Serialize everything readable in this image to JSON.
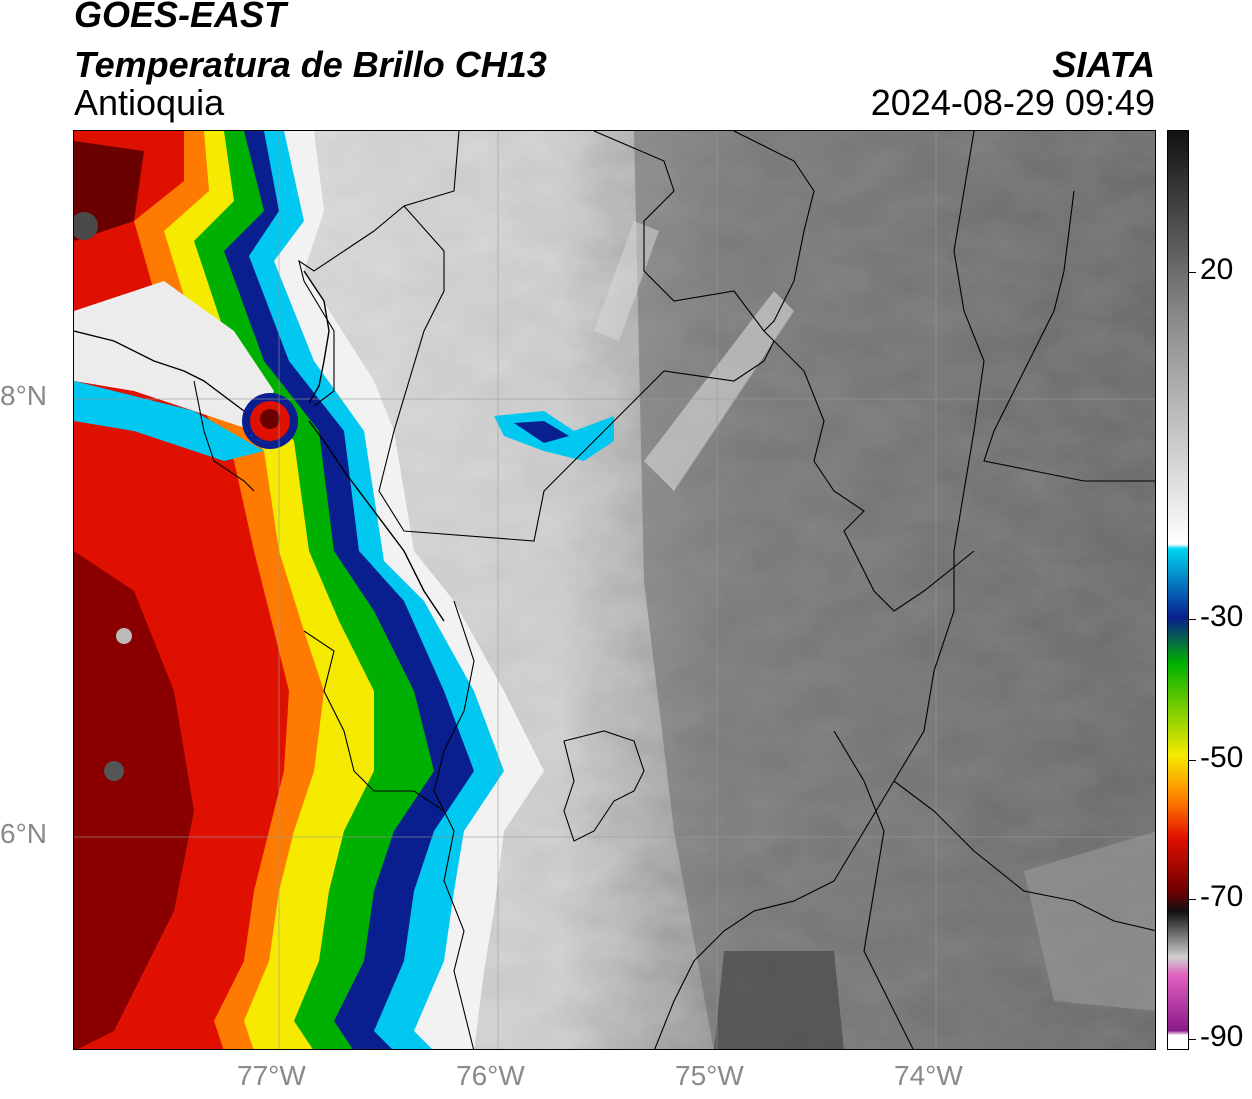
{
  "header": {
    "title": "GOES-EAST",
    "subtitle": "Temperatura de Brillo CH13",
    "region": "Antioquia",
    "organization": "SIATA",
    "timestamp": "2024-08-29 09:49"
  },
  "map": {
    "lat_labels": [
      "8°N",
      "6°N"
    ],
    "lon_labels": [
      "77°W",
      "76°W",
      "75°W",
      "74°W"
    ],
    "lon_range": [
      -77.95,
      -73.0
    ],
    "lat_range": [
      5.0,
      9.2
    ]
  },
  "colorbar": {
    "tick_labels": [
      "20",
      "-30",
      "-50",
      "-70",
      "-90"
    ],
    "tick_values": [
      20,
      -30,
      -50,
      -70,
      -90
    ],
    "value_range": [
      -90,
      40
    ],
    "colors": {
      "white": "#ffffff",
      "cyan": "#00d4f0",
      "navy": "#0a1f8f",
      "green": "#00b000",
      "yellow": "#f5ea00",
      "red": "#e01000",
      "darkred": "#6a0000",
      "magenta": "#e060c0",
      "gray": "#888888",
      "black": "#111111"
    }
  }
}
